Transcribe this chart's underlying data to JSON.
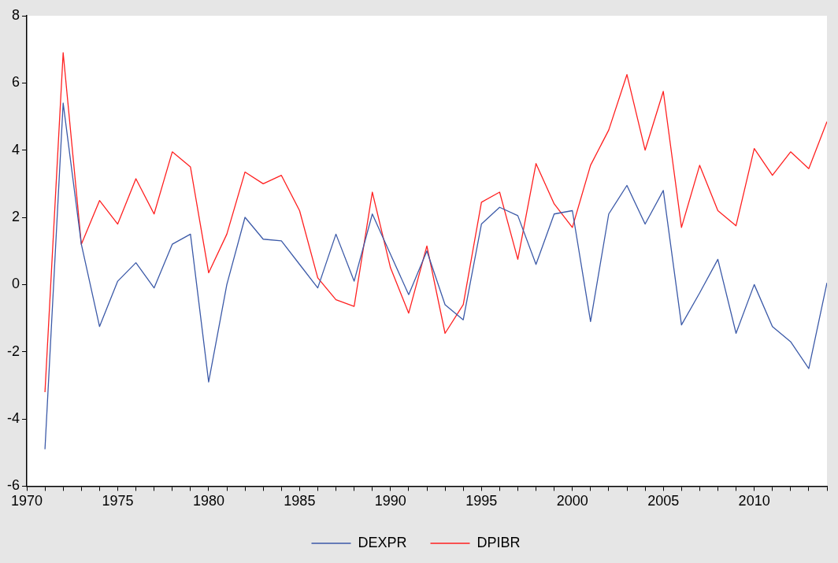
{
  "chart_data": {
    "type": "line",
    "x": [
      1971,
      1972,
      1973,
      1974,
      1975,
      1976,
      1977,
      1978,
      1979,
      1980,
      1981,
      1982,
      1983,
      1984,
      1985,
      1986,
      1987,
      1988,
      1989,
      1990,
      1991,
      1992,
      1993,
      1994,
      1995,
      1996,
      1997,
      1998,
      1999,
      2000,
      2001,
      2002,
      2003,
      2004,
      2005,
      2006,
      2007,
      2008,
      2009,
      2010,
      2011,
      2012,
      2013,
      2014
    ],
    "series": [
      {
        "name": "DEXPR",
        "color": "#3c5aa8",
        "values": [
          -4.9,
          5.4,
          1.2,
          -1.25,
          0.1,
          0.65,
          -0.1,
          1.2,
          1.5,
          -2.9,
          0.0,
          2.0,
          1.35,
          1.3,
          0.6,
          -0.1,
          1.5,
          0.1,
          2.1,
          0.9,
          -0.3,
          1.0,
          -0.6,
          -1.05,
          1.8,
          2.3,
          2.05,
          0.6,
          2.1,
          2.2,
          -1.1,
          2.1,
          2.95,
          1.8,
          2.8,
          -1.2,
          -0.25,
          0.75,
          -1.45,
          0.0,
          -1.25,
          -1.7,
          -2.5,
          0.05
        ]
      },
      {
        "name": "DPIBR",
        "color": "#ff2020",
        "values": [
          -3.2,
          6.9,
          1.2,
          2.5,
          1.8,
          3.15,
          2.1,
          3.95,
          3.5,
          0.35,
          1.5,
          3.35,
          3.0,
          3.25,
          2.2,
          0.2,
          -0.45,
          -0.65,
          2.75,
          0.5,
          -0.85,
          1.15,
          -1.45,
          -0.6,
          2.45,
          2.75,
          0.75,
          3.6,
          2.4,
          1.7,
          3.55,
          4.6,
          6.25,
          4.0,
          5.75,
          1.7,
          3.55,
          2.2,
          1.75,
          4.05,
          3.25,
          3.95,
          3.45,
          4.85
        ]
      }
    ],
    "xlim": [
      1970,
      2014
    ],
    "xticks": [
      1970,
      {
        "value": 1971,
        "label": null
      },
      {
        "value": 1972,
        "label": null
      },
      {
        "value": 1973,
        "label": null
      },
      {
        "value": 1974,
        "label": null
      },
      1975,
      {
        "value": 1976,
        "label": null
      },
      {
        "value": 1977,
        "label": null
      },
      {
        "value": 1978,
        "label": null
      },
      {
        "value": 1979,
        "label": null
      },
      1980,
      {
        "value": 1981,
        "label": null
      },
      {
        "value": 1982,
        "label": null
      },
      {
        "value": 1983,
        "label": null
      },
      {
        "value": 1984,
        "label": null
      },
      1985,
      {
        "value": 1986,
        "label": null
      },
      {
        "value": 1987,
        "label": null
      },
      {
        "value": 1988,
        "label": null
      },
      {
        "value": 1989,
        "label": null
      },
      1990,
      {
        "value": 1991,
        "label": null
      },
      {
        "value": 1992,
        "label": null
      },
      {
        "value": 1993,
        "label": null
      },
      {
        "value": 1994,
        "label": null
      },
      1995,
      {
        "value": 1996,
        "label": null
      },
      {
        "value": 1997,
        "label": null
      },
      {
        "value": 1998,
        "label": null
      },
      {
        "value": 1999,
        "label": null
      },
      2000,
      {
        "value": 2001,
        "label": null
      },
      {
        "value": 2002,
        "label": null
      },
      {
        "value": 2003,
        "label": null
      },
      {
        "value": 2004,
        "label": null
      },
      2005,
      {
        "value": 2006,
        "label": null
      },
      {
        "value": 2007,
        "label": null
      },
      {
        "value": 2008,
        "label": null
      },
      {
        "value": 2009,
        "label": null
      },
      2010,
      {
        "value": 2011,
        "label": null
      },
      {
        "value": 2012,
        "label": null
      },
      {
        "value": 2013,
        "label": null
      },
      {
        "value": 2014,
        "label": null
      }
    ],
    "ylim": [
      -6,
      8
    ],
    "yticks": [
      -6,
      -4,
      -2,
      0,
      2,
      4,
      6,
      8
    ],
    "legend": "bottom",
    "marker": "none",
    "line_style": "solid"
  }
}
